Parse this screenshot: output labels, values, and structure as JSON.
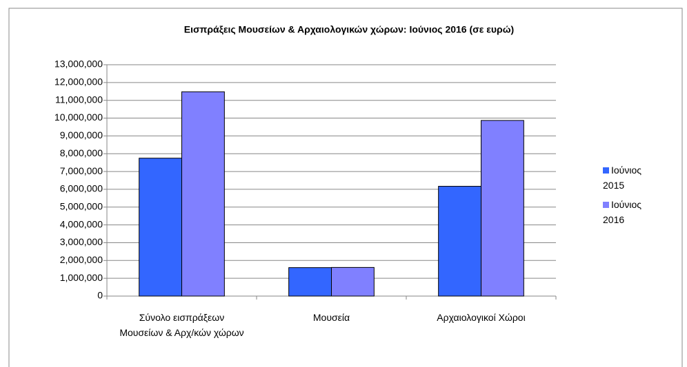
{
  "chart_data": {
    "type": "bar",
    "title": "Εισπράξεις Μουσείων & Αρχαιολογικών χώρων: Ιούνιος 2016 (σε ευρώ)",
    "categories": [
      "Σύνολο εισπράξεων Μουσείων & Αρχ/κών χώρων",
      "Μουσεία",
      "Αρχαιολογικοί Χώροι"
    ],
    "series": [
      {
        "name": "Ιούνιος 2015",
        "color": "#3366ff",
        "values": [
          7750000,
          1600000,
          6170000
        ]
      },
      {
        "name": "Ιούνιος 2016",
        "color": "#8080ff",
        "values": [
          11480000,
          1610000,
          9870000
        ]
      }
    ],
    "ylim": [
      0,
      13000000
    ],
    "yticks": [
      0,
      {
        "value": 1000000,
        "label": "1,000,000"
      },
      {
        "value": 2000000,
        "label": "2,000,000"
      },
      {
        "value": 3000000,
        "label": "3,000,000"
      },
      {
        "value": 4000000,
        "label": "4,000,000"
      },
      {
        "value": 5000000,
        "label": "5,000,000"
      },
      {
        "value": 6000000,
        "label": "6,000,000"
      },
      {
        "value": 7000000,
        "label": "7,000,000"
      },
      {
        "value": 8000000,
        "label": "8,000,000"
      },
      {
        "value": 9000000,
        "label": "9,000,000"
      },
      {
        "value": 10000000,
        "label": "10,000,000"
      },
      {
        "value": 11000000,
        "label": "11,000,000"
      },
      {
        "value": 12000000,
        "label": "12,000,000"
      },
      {
        "value": 13000000,
        "label": "13,000,000"
      }
    ],
    "grid": true,
    "legend": "right"
  }
}
